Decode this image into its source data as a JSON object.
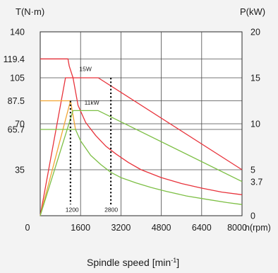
{
  "chart_data": {
    "type": "line",
    "left_axis": {
      "title": "T(N·m)",
      "ticks": [
        "140",
        "119.4",
        "105",
        "87.5",
        "70",
        "65.7",
        "35"
      ],
      "tick_values": [
        140,
        119.4,
        105,
        87.5,
        70,
        65.7,
        35
      ],
      "range": [
        0,
        140
      ]
    },
    "right_axis": {
      "title": "P(kW)",
      "ticks": [
        "20",
        "15",
        "10",
        "5",
        "3.7",
        "0"
      ],
      "tick_values": [
        20,
        15,
        10,
        5,
        3.7,
        0
      ],
      "range": [
        0,
        20
      ]
    },
    "x_axis": {
      "ticks": [
        "0",
        "1600",
        "3200",
        "4800",
        "6400",
        "8000"
      ],
      "tick_values": [
        0,
        1600,
        3200,
        4800,
        6400,
        8000
      ],
      "unit": "n(rpm)",
      "range": [
        0,
        8000
      ]
    },
    "caption": "Spindle speed",
    "caption_unit": "[min",
    "caption_unit_sup": "-1",
    "caption_unit_end": "]",
    "annotations": [
      {
        "text": "15W",
        "x": 1550,
        "y": 110
      },
      {
        "text": "11kW",
        "x": 1750,
        "y": 84.5
      },
      {
        "text": "1200",
        "x": 1000,
        "y": 3
      },
      {
        "text": "2800",
        "x": 2550,
        "y": 3
      }
    ],
    "markers": [
      {
        "x": 1200,
        "y": 87.5
      },
      {
        "x": 2800,
        "y": 105
      }
    ],
    "series": [
      {
        "color": "#e8333b",
        "axis": "left",
        "points": [
          [
            0,
            119.4
          ],
          [
            1100,
            119.4
          ],
          [
            1150,
            114
          ],
          [
            1300,
            105
          ],
          [
            1500,
            84
          ],
          [
            1800,
            71
          ],
          [
            2200,
            61
          ],
          [
            2600,
            53
          ],
          [
            3000,
            47
          ],
          [
            3500,
            40.5
          ],
          [
            4000,
            35
          ],
          [
            4800,
            29
          ],
          [
            5600,
            24.5
          ],
          [
            6400,
            21
          ],
          [
            7200,
            18
          ],
          [
            8000,
            16
          ]
        ]
      },
      {
        "color": "#e8333b",
        "axis": "left",
        "points": [
          [
            0,
            0
          ],
          [
            1000,
            105
          ],
          [
            2300,
            105
          ],
          [
            8000,
            35
          ]
        ]
      },
      {
        "color": "#f2a533",
        "axis": "left",
        "points": [
          [
            0,
            87.5
          ],
          [
            1000,
            87.5
          ],
          [
            1200,
            87.5
          ]
        ]
      },
      {
        "color": "#f2a533",
        "axis": "left",
        "points": [
          [
            0,
            0
          ],
          [
            1200,
            87.5
          ],
          [
            1400,
            65.7
          ]
        ]
      },
      {
        "color": "#7dbf45",
        "axis": "left",
        "points": [
          [
            0,
            65.7
          ],
          [
            1400,
            65.7
          ],
          [
            1600,
            57
          ],
          [
            2000,
            46
          ],
          [
            2400,
            39
          ],
          [
            2800,
            33
          ],
          [
            3200,
            29
          ],
          [
            3800,
            25
          ],
          [
            4400,
            21.5
          ],
          [
            5000,
            18.5
          ],
          [
            5800,
            15
          ],
          [
            6600,
            12.5
          ],
          [
            7400,
            10
          ],
          [
            8000,
            8.5
          ]
        ]
      },
      {
        "color": "#7dbf45",
        "axis": "left",
        "points": [
          [
            0,
            0
          ],
          [
            1300,
            80
          ],
          [
            2300,
            80
          ],
          [
            8000,
            26
          ]
        ]
      }
    ],
    "grid": true
  }
}
